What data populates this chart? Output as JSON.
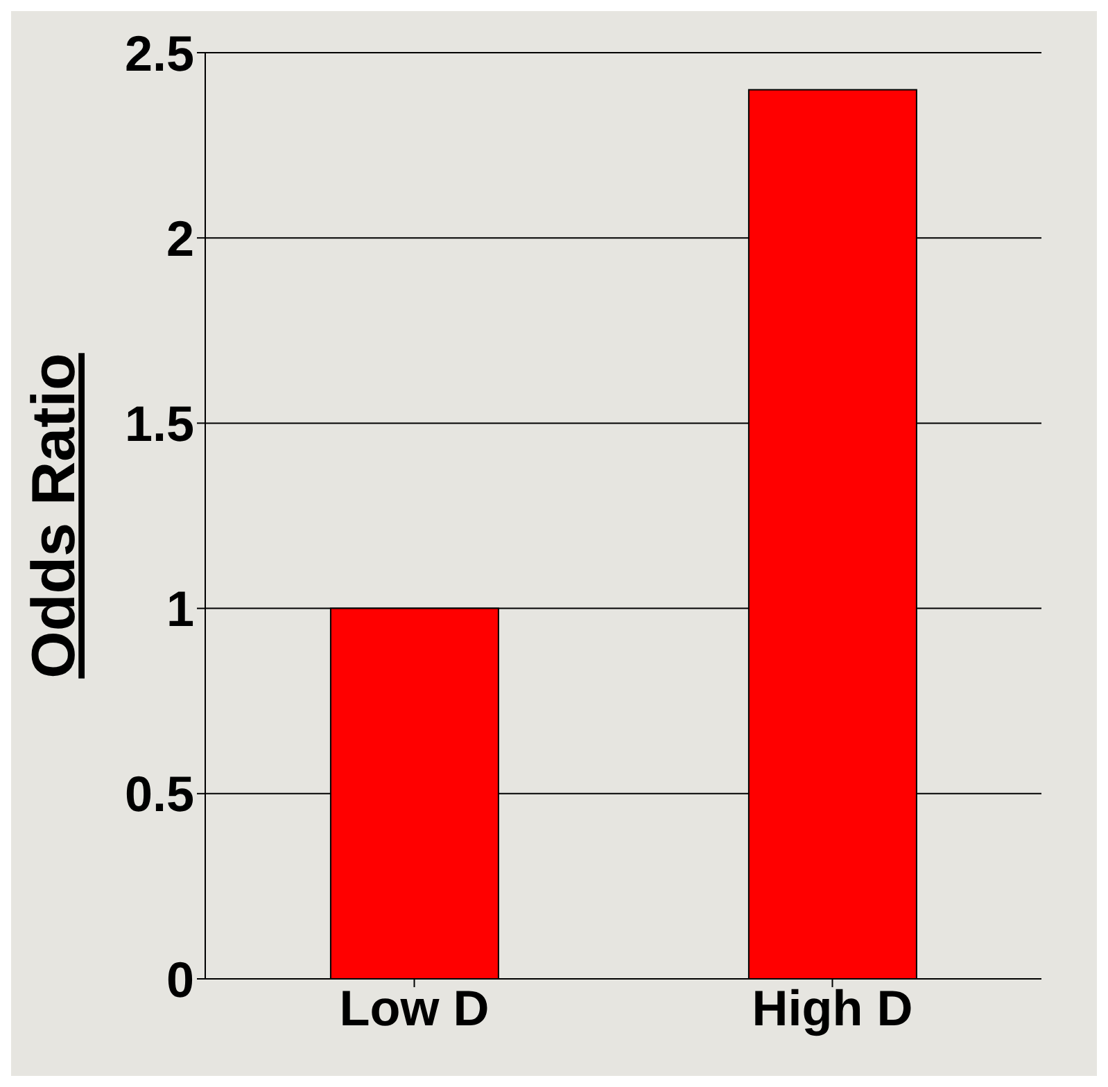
{
  "chart_data": {
    "type": "bar",
    "ylabel": "Odds Ratio",
    "categories": [
      "Low D",
      "High D"
    ],
    "values": [
      1.0,
      2.4
    ],
    "color": "#ff0000",
    "ylim": [
      0,
      2.5
    ],
    "yticks": [
      0,
      0.5,
      1,
      1.5,
      2,
      2.5
    ],
    "grid": "y"
  }
}
